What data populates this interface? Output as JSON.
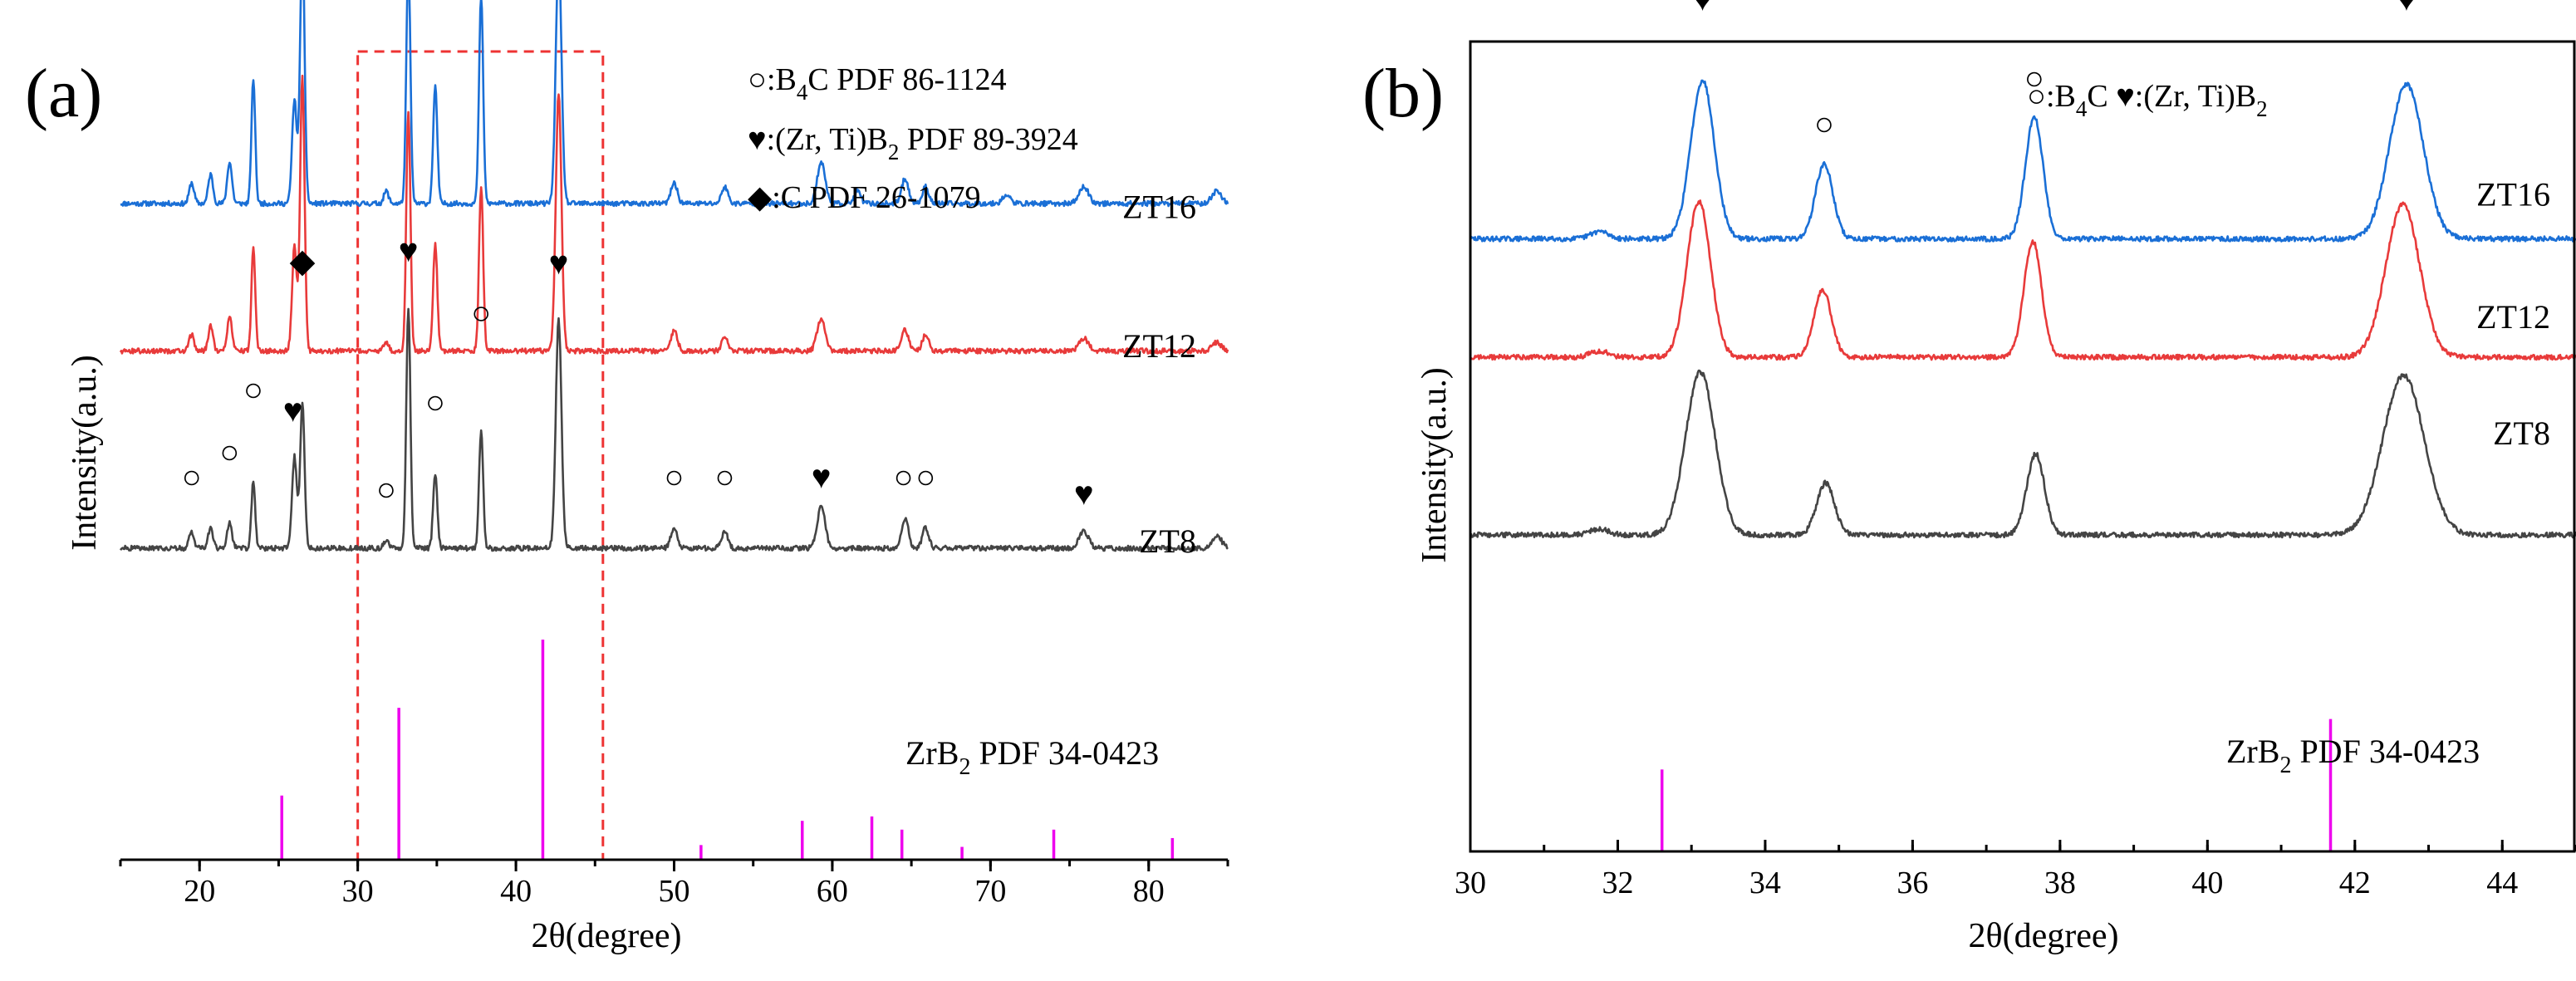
{
  "chart_data": [
    {
      "panel": "(a)",
      "type": "line",
      "xlabel": "2θ(degree)",
      "ylabel": "Intensity(a.u.)",
      "xlim": [
        15,
        85
      ],
      "xticks": [
        20,
        30,
        40,
        50,
        60,
        70,
        80
      ],
      "highlight_range": [
        30,
        45.5
      ],
      "legend": [
        {
          "symbol": "○",
          "text": ":B",
          "sub": "4",
          "after": "C  PDF 86-1124"
        },
        {
          "symbol": "♥",
          "text": ":(Zr, Ti)B",
          "sub": "2",
          "after": " PDF 89-3924"
        },
        {
          "symbol": "◆",
          "text": ":C  PDF 26-1079",
          "sub": "",
          "after": ""
        }
      ],
      "series": [
        {
          "name": "ZT16",
          "color": "#1a6fd6",
          "baseline": 0.22,
          "offset": 0.81,
          "peaks": [
            [
              19.5,
              0.05,
              0.15
            ],
            [
              20.7,
              0.07,
              0.15
            ],
            [
              21.9,
              0.1,
              0.15
            ],
            [
              23.4,
              0.3,
              0.12
            ],
            [
              26.0,
              0.25,
              0.15
            ],
            [
              26.5,
              0.64,
              0.14
            ],
            [
              31.8,
              0.03,
              0.15
            ],
            [
              33.2,
              0.58,
              0.13
            ],
            [
              34.9,
              0.28,
              0.13
            ],
            [
              37.8,
              0.5,
              0.13
            ],
            [
              42.7,
              0.6,
              0.18
            ],
            [
              50.0,
              0.05,
              0.2
            ],
            [
              53.2,
              0.04,
              0.2
            ],
            [
              59.3,
              0.1,
              0.25
            ],
            [
              61.6,
              0.03,
              0.2
            ],
            [
              64.6,
              0.06,
              0.22
            ],
            [
              65.9,
              0.04,
              0.2
            ],
            [
              71.0,
              0.02,
              0.25
            ],
            [
              75.9,
              0.04,
              0.3
            ],
            [
              84.3,
              0.03,
              0.3
            ]
          ]
        },
        {
          "name": "ZT12",
          "color": "#e83a3a",
          "baseline": 0.22,
          "offset": 0.455,
          "peaks": [
            [
              19.5,
              0.04,
              0.15
            ],
            [
              20.7,
              0.06,
              0.15
            ],
            [
              21.9,
              0.08,
              0.15
            ],
            [
              23.4,
              0.25,
              0.12
            ],
            [
              26.0,
              0.25,
              0.15
            ],
            [
              26.5,
              0.66,
              0.14
            ],
            [
              31.8,
              0.02,
              0.15
            ],
            [
              33.2,
              0.58,
              0.13
            ],
            [
              34.9,
              0.26,
              0.13
            ],
            [
              37.8,
              0.4,
              0.13
            ],
            [
              42.7,
              0.62,
              0.18
            ],
            [
              50.0,
              0.05,
              0.2
            ],
            [
              53.2,
              0.03,
              0.2
            ],
            [
              59.3,
              0.08,
              0.25
            ],
            [
              64.6,
              0.05,
              0.22
            ],
            [
              65.9,
              0.04,
              0.2
            ],
            [
              75.9,
              0.03,
              0.3
            ],
            [
              84.3,
              0.02,
              0.3
            ]
          ]
        },
        {
          "name": "ZT8",
          "color": "#444444",
          "baseline": 0.2,
          "offset": 0.0,
          "peaks": [
            [
              19.5,
              0.04,
              0.15
            ],
            [
              20.7,
              0.05,
              0.15
            ],
            [
              21.9,
              0.06,
              0.15
            ],
            [
              23.4,
              0.16,
              0.12
            ],
            [
              26.0,
              0.22,
              0.15
            ],
            [
              26.5,
              0.35,
              0.14
            ],
            [
              31.8,
              0.02,
              0.15
            ],
            [
              33.2,
              0.58,
              0.13
            ],
            [
              34.9,
              0.18,
              0.13
            ],
            [
              37.8,
              0.28,
              0.13
            ],
            [
              42.7,
              0.55,
              0.18
            ],
            [
              50.0,
              0.05,
              0.2
            ],
            [
              53.2,
              0.04,
              0.2
            ],
            [
              59.3,
              0.1,
              0.25
            ],
            [
              64.6,
              0.07,
              0.22
            ],
            [
              65.9,
              0.05,
              0.2
            ],
            [
              75.9,
              0.04,
              0.3
            ],
            [
              84.3,
              0.03,
              0.3
            ]
          ]
        }
      ],
      "series_label_pos": {
        "ZT16": 0.995,
        "ZT12": 0.66,
        "ZT8": 0.19
      },
      "markers": [
        {
          "symbol": "○",
          "x": 19.5,
          "y": 0.345
        },
        {
          "symbol": "○",
          "x": 21.9,
          "y": 0.405
        },
        {
          "symbol": "○",
          "x": 23.4,
          "y": 0.555
        },
        {
          "symbol": "♥",
          "x": 25.9,
          "y": 0.505
        },
        {
          "symbol": "◆",
          "x": 26.5,
          "y": 0.865
        },
        {
          "symbol": "○",
          "x": 31.8,
          "y": 0.315
        },
        {
          "symbol": "♥",
          "x": 33.2,
          "y": 0.89
        },
        {
          "symbol": "○",
          "x": 34.9,
          "y": 0.525
        },
        {
          "symbol": "○",
          "x": 37.8,
          "y": 0.74
        },
        {
          "symbol": "♥",
          "x": 42.7,
          "y": 0.86
        },
        {
          "symbol": "○",
          "x": 50.0,
          "y": 0.345
        },
        {
          "symbol": "○",
          "x": 53.2,
          "y": 0.345
        },
        {
          "symbol": "♥",
          "x": 59.3,
          "y": 0.345
        },
        {
          "symbol": "○",
          "x": 64.5,
          "y": 0.345
        },
        {
          "symbol": "○",
          "x": 65.9,
          "y": 0.345
        },
        {
          "symbol": "♥",
          "x": 75.9,
          "y": 0.305
        }
      ],
      "reference": {
        "label": "ZrB",
        "sub": "2",
        "after": " PDF 34-0423",
        "color": "#ee00ee",
        "lines": [
          [
            25.2,
            0.175
          ],
          [
            32.6,
            0.414
          ],
          [
            41.7,
            0.6
          ],
          [
            51.7,
            0.04
          ],
          [
            58.1,
            0.106
          ],
          [
            62.5,
            0.118
          ],
          [
            64.4,
            0.082
          ],
          [
            68.2,
            0.035
          ],
          [
            74.0,
            0.082
          ],
          [
            81.5,
            0.059
          ]
        ]
      }
    },
    {
      "panel": "(b)",
      "type": "line",
      "xlabel": "2θ(degree)",
      "ylabel": "Intensity(a.u.)",
      "xlim": [
        30,
        45
      ],
      "xticks": [
        30,
        32,
        34,
        36,
        38,
        40,
        42,
        44
      ],
      "legend": [
        {
          "symbol": "○",
          "text": ":B",
          "sub": "4",
          "after": "C "
        },
        {
          "symbol": "♥",
          "text": ":(Zr, Ti)B",
          "sub": "2",
          "after": ""
        }
      ],
      "series": [
        {
          "name": "ZT16",
          "color": "#1a6fd6",
          "baseline": 0.232,
          "offset": 0.713,
          "peaks": [
            [
              31.75,
              0.018,
              0.12
            ],
            [
              33.15,
              0.382,
              0.16
            ],
            [
              34.8,
              0.179,
              0.12
            ],
            [
              37.65,
              0.293,
              0.12
            ],
            [
              42.7,
              0.372,
              0.23
            ]
          ]
        },
        {
          "name": "ZT12",
          "color": "#e83a3a",
          "baseline": 0.232,
          "offset": 0.428,
          "peaks": [
            [
              31.75,
              0.015,
              0.12
            ],
            [
              33.1,
              0.375,
              0.16
            ],
            [
              34.78,
              0.161,
              0.12
            ],
            [
              37.63,
              0.279,
              0.12
            ],
            [
              42.65,
              0.367,
              0.23
            ]
          ]
        },
        {
          "name": "ZT8",
          "color": "#444444",
          "baseline": 0.232,
          "offset": 0.0,
          "peaks": [
            [
              31.75,
              0.015,
              0.12
            ],
            [
              33.12,
              0.393,
              0.2
            ],
            [
              34.82,
              0.125,
              0.12
            ],
            [
              37.67,
              0.195,
              0.12
            ],
            [
              42.66,
              0.384,
              0.28
            ]
          ]
        }
      ],
      "series_label_pos": {
        "ZT16": 1.025,
        "ZT12": 0.73,
        "ZT8": 0.45
      },
      "markers": [
        {
          "symbol": "♥",
          "x": 33.15,
          "y": 1.495
        },
        {
          "symbol": "○",
          "x": 34.8,
          "y": 1.195
        },
        {
          "symbol": "○",
          "x": 37.65,
          "y": 1.305
        },
        {
          "symbol": "♥",
          "x": 42.7,
          "y": 1.495
        }
      ],
      "reference": {
        "label": "ZrB",
        "sub": "2",
        "after": "  PDF 34-0423",
        "color": "#ee00ee",
        "lines": [
          [
            32.6,
            0.232
          ],
          [
            41.67,
            0.375
          ]
        ]
      }
    }
  ]
}
